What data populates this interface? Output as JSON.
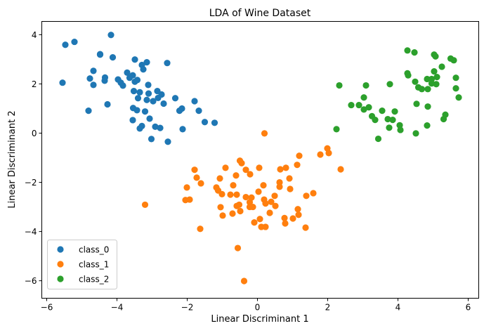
{
  "chart_data": {
    "type": "scatter",
    "title": "LDA of Wine Dataset",
    "xlabel": "Linear Discriminant 1",
    "ylabel": "Linear Discriminant 2",
    "xlim": [
      -6.14,
      6.3
    ],
    "ylim": [
      -6.71,
      4.54
    ],
    "xticks": [
      -6,
      -4,
      -2,
      0,
      2,
      4,
      6
    ],
    "yticks": [
      -6,
      -4,
      -2,
      0,
      2,
      4
    ],
    "grid": false,
    "legend_position": "lower-left",
    "series": [
      {
        "name": "class_0",
        "color": "#1f77b4",
        "points": [
          [
            -5.47,
            3.59
          ],
          [
            -5.21,
            3.71
          ],
          [
            -4.17,
            3.99
          ],
          [
            -4.48,
            3.21
          ],
          [
            -4.48,
            3.19
          ],
          [
            -4.12,
            3.08
          ],
          [
            -3.49,
            2.99
          ],
          [
            -3.15,
            2.88
          ],
          [
            -3.29,
            2.77
          ],
          [
            -3.25,
            2.59
          ],
          [
            -2.57,
            2.85
          ],
          [
            -4.67,
            2.53
          ],
          [
            -5.55,
            2.05
          ],
          [
            -4.77,
            2.22
          ],
          [
            -4.67,
            1.96
          ],
          [
            -4.34,
            2.26
          ],
          [
            -4.35,
            2.13
          ],
          [
            -3.97,
            2.18
          ],
          [
            -3.89,
            2.05
          ],
          [
            -3.83,
            1.93
          ],
          [
            -3.71,
            2.46
          ],
          [
            -3.55,
            2.35
          ],
          [
            -3.64,
            2.25
          ],
          [
            -3.42,
            2.16
          ],
          [
            -3.49,
            2.09
          ],
          [
            -3.11,
            1.96
          ],
          [
            -3.52,
            1.71
          ],
          [
            -3.35,
            1.66
          ],
          [
            -3.4,
            1.42
          ],
          [
            -3.1,
            1.61
          ],
          [
            -3.15,
            1.35
          ],
          [
            -2.85,
            1.71
          ],
          [
            -2.73,
            1.57
          ],
          [
            -2.83,
            1.43
          ],
          [
            -2.97,
            1.3
          ],
          [
            -2.67,
            1.2
          ],
          [
            -2.34,
            1.42
          ],
          [
            -1.79,
            1.3
          ],
          [
            -1.67,
            0.91
          ],
          [
            -2.15,
            1.0
          ],
          [
            -2.22,
            0.91
          ],
          [
            -1.5,
            0.45
          ],
          [
            -1.22,
            0.42
          ],
          [
            -2.13,
            0.16
          ],
          [
            -4.27,
            1.17
          ],
          [
            -4.81,
            0.91
          ],
          [
            -3.54,
            1.02
          ],
          [
            -3.43,
            0.93
          ],
          [
            -3.2,
            0.88
          ],
          [
            -3.07,
            0.59
          ],
          [
            -3.55,
            0.53
          ],
          [
            -3.29,
            0.29
          ],
          [
            -3.35,
            0.19
          ],
          [
            -2.91,
            0.26
          ],
          [
            -2.77,
            0.21
          ],
          [
            -3.02,
            -0.24
          ],
          [
            -2.55,
            -0.35
          ]
        ]
      },
      {
        "name": "class_1",
        "color": "#ff7f0e",
        "points": [
          [
            0.2,
            -0.01
          ],
          [
            -1.79,
            -1.49
          ],
          [
            -1.73,
            -1.81
          ],
          [
            -1.61,
            -2.04
          ],
          [
            -2.01,
            -2.21
          ],
          [
            -2.05,
            -2.72
          ],
          [
            -1.93,
            -2.7
          ],
          [
            -1.63,
            -3.89
          ],
          [
            -0.91,
            -1.41
          ],
          [
            -1.07,
            -1.84
          ],
          [
            -1.17,
            -2.21
          ],
          [
            -1.12,
            -2.33
          ],
          [
            -1.01,
            -2.48
          ],
          [
            -1.05,
            -3.01
          ],
          [
            -0.99,
            -3.35
          ],
          [
            -0.71,
            -3.27
          ],
          [
            -0.61,
            -1.72
          ],
          [
            -0.69,
            -2.12
          ],
          [
            -0.77,
            -2.5
          ],
          [
            -0.59,
            -2.5
          ],
          [
            -0.5,
            -1.12
          ],
          [
            -0.45,
            -1.22
          ],
          [
            -0.33,
            -1.49
          ],
          [
            -0.21,
            -1.67
          ],
          [
            0.05,
            -1.41
          ],
          [
            -0.52,
            -2.91
          ],
          [
            -0.59,
            -2.96
          ],
          [
            -0.49,
            -3.17
          ],
          [
            -0.33,
            -2.6
          ],
          [
            -0.17,
            -2.62
          ],
          [
            -0.22,
            -2.81
          ],
          [
            -0.22,
            -3.0
          ],
          [
            -0.13,
            -3.0
          ],
          [
            0.03,
            -2.38
          ],
          [
            0.17,
            -2.12
          ],
          [
            0.19,
            -2.7
          ],
          [
            0.23,
            -2.86
          ],
          [
            0.39,
            -2.79
          ],
          [
            0.49,
            -2.55
          ],
          [
            0.51,
            -2.96
          ],
          [
            0.35,
            -3.24
          ],
          [
            -0.09,
            -3.63
          ],
          [
            0.07,
            -3.49
          ],
          [
            0.11,
            -3.81
          ],
          [
            0.23,
            -3.81
          ],
          [
            -0.56,
            -4.67
          ],
          [
            -0.38,
            -6.01
          ],
          [
            0.65,
            -1.47
          ],
          [
            0.81,
            -1.41
          ],
          [
            0.91,
            -1.84
          ],
          [
            0.63,
            -2.0
          ],
          [
            0.63,
            -2.18
          ],
          [
            0.93,
            -2.27
          ],
          [
            1.13,
            -1.29
          ],
          [
            1.19,
            -0.92
          ],
          [
            1.79,
            -0.87
          ],
          [
            1.99,
            -0.62
          ],
          [
            2.03,
            -0.81
          ],
          [
            2.37,
            -1.47
          ],
          [
            1.39,
            -2.55
          ],
          [
            1.59,
            -2.44
          ],
          [
            1.15,
            -3.09
          ],
          [
            1.17,
            -3.32
          ],
          [
            1.01,
            -3.47
          ],
          [
            0.77,
            -3.45
          ],
          [
            0.79,
            -3.67
          ],
          [
            1.37,
            -3.84
          ],
          [
            -3.2,
            -2.91
          ]
        ]
      },
      {
        "name": "class_2",
        "color": "#2ca02c",
        "points": [
          [
            4.27,
            3.36
          ],
          [
            4.47,
            3.28
          ],
          [
            5.03,
            3.19
          ],
          [
            5.07,
            3.12
          ],
          [
            5.5,
            3.03
          ],
          [
            5.59,
            2.96
          ],
          [
            5.25,
            2.7
          ],
          [
            4.27,
            2.43
          ],
          [
            4.29,
            2.35
          ],
          [
            4.49,
            2.09
          ],
          [
            5.03,
            2.51
          ],
          [
            4.83,
            2.2
          ],
          [
            4.96,
            2.2
          ],
          [
            5.11,
            2.28
          ],
          [
            4.96,
            2.02
          ],
          [
            5.09,
            1.99
          ],
          [
            4.58,
            1.86
          ],
          [
            4.68,
            1.79
          ],
          [
            4.85,
            1.79
          ],
          [
            5.65,
            2.25
          ],
          [
            5.65,
            1.82
          ],
          [
            5.73,
            1.45
          ],
          [
            4.53,
            1.19
          ],
          [
            4.85,
            1.08
          ],
          [
            5.35,
            0.75
          ],
          [
            5.3,
            0.57
          ],
          [
            4.83,
            0.31
          ],
          [
            4.51,
            -0.01
          ],
          [
            2.33,
            1.94
          ],
          [
            3.09,
            1.94
          ],
          [
            3.77,
            1.99
          ],
          [
            3.03,
            1.45
          ],
          [
            2.67,
            1.14
          ],
          [
            2.89,
            1.14
          ],
          [
            3.17,
            1.05
          ],
          [
            3.03,
            0.96
          ],
          [
            3.26,
            0.69
          ],
          [
            3.35,
            0.54
          ],
          [
            3.55,
            0.91
          ],
          [
            3.91,
            0.88
          ],
          [
            3.71,
            0.57
          ],
          [
            3.85,
            0.54
          ],
          [
            4.05,
            0.32
          ],
          [
            4.07,
            0.13
          ],
          [
            3.75,
            0.22
          ],
          [
            2.25,
            0.16
          ],
          [
            3.44,
            -0.23
          ]
        ]
      }
    ]
  }
}
